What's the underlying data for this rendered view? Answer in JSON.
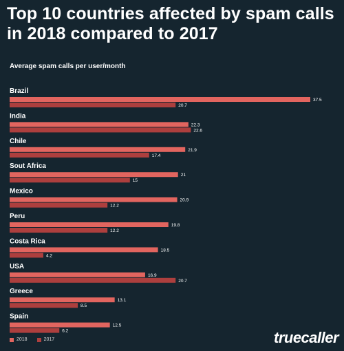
{
  "title": "Top 10 countries affected by spam calls in 2018 compared to 2017",
  "subtitle": "Average spam calls per user/month",
  "logo": "truecaller",
  "colors": {
    "series_2018": "#e2655f",
    "series_2017": "#ad3f3e",
    "background": "#15252f"
  },
  "chart_data": {
    "type": "bar",
    "orientation": "horizontal",
    "title": "Top 10 countries affected by spam calls in 2018 compared to 2017",
    "subtitle": "Average spam calls per user/month",
    "categories": [
      "Brazil",
      "India",
      "Chile",
      "Sout Africa",
      "Mexico",
      "Peru",
      "Costa Rica",
      "USA",
      "Greece",
      "Spain"
    ],
    "series": [
      {
        "name": "2018",
        "values": [
          37.5,
          22.3,
          21.9,
          21,
          20.9,
          19.8,
          18.5,
          16.9,
          13.1,
          12.5
        ]
      },
      {
        "name": "2017",
        "values": [
          20.7,
          22.6,
          17.4,
          15,
          12.2,
          12.2,
          4.2,
          20.7,
          8.5,
          6.2
        ]
      }
    ],
    "value_labels": {
      "2018": [
        "37.5",
        "22.3",
        "21.9",
        "21",
        "20.9",
        "19.8",
        "18.5",
        "16.9",
        "13.1",
        "12.5"
      ],
      "2017": [
        "20.7",
        "22.6",
        "17.4",
        "15",
        "12.2",
        "12.2",
        "4.2",
        "20.7",
        "8.5",
        "6.2"
      ]
    },
    "xlim": [
      0,
      37.5
    ],
    "grid": false,
    "legend_position": "bottom-left"
  }
}
